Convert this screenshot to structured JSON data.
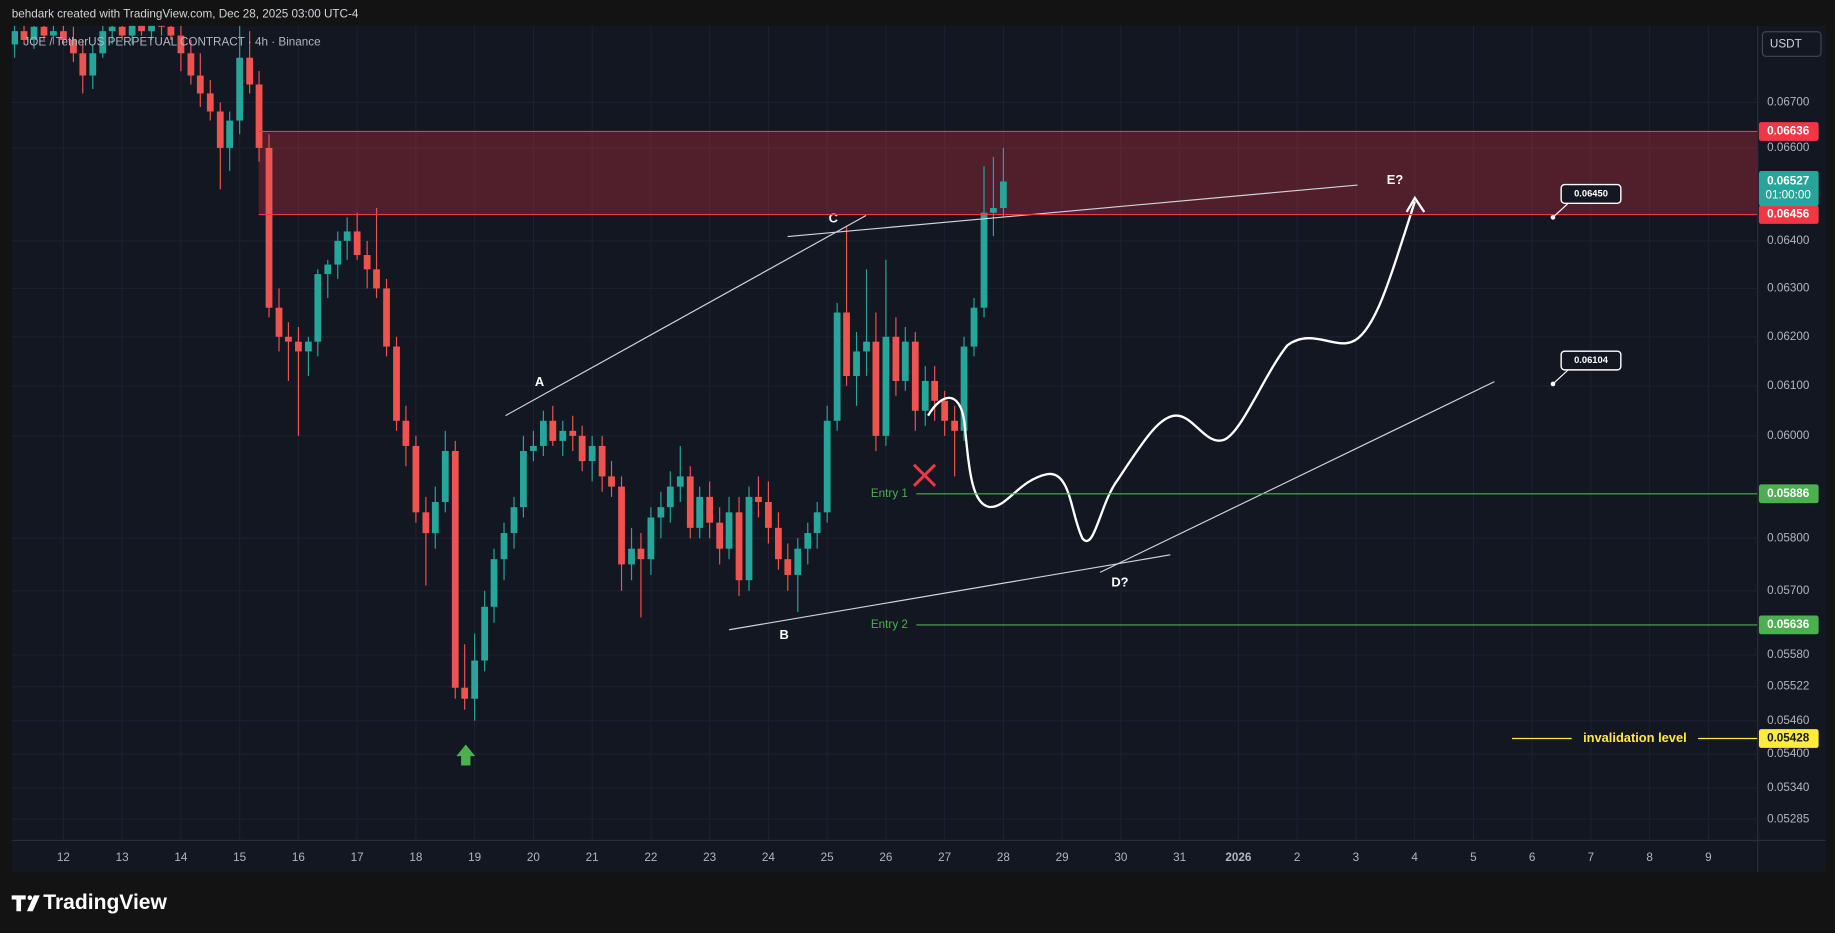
{
  "header": {
    "credit": "behdark created with TradingView.com, Dec 28, 2025 03:00 UTC-4",
    "symbol": "JOE / TetherUS PERPETUAL CONTRACT · 4h · Binance",
    "currency": "USDT",
    "brand": "TradingView"
  },
  "chart_data": {
    "type": "candlestick",
    "x": [
      11.17,
      11.33,
      11.5,
      11.67,
      11.83,
      12,
      12.17,
      12.33,
      12.5,
      12.67,
      12.83,
      13,
      13.17,
      13.33,
      13.5,
      13.67,
      13.83,
      14,
      14.17,
      14.33,
      14.5,
      14.67,
      14.83,
      15,
      15.17,
      15.33,
      15.5,
      15.67,
      15.83,
      16,
      16.17,
      16.33,
      16.5,
      16.67,
      16.83,
      17,
      17.17,
      17.33,
      17.5,
      17.67,
      17.83,
      18,
      18.17,
      18.33,
      18.5,
      18.67,
      18.83,
      19,
      19.17,
      19.33,
      19.5,
      19.67,
      19.83,
      20,
      20.17,
      20.33,
      20.5,
      20.67,
      20.83,
      21,
      21.17,
      21.33,
      21.5,
      21.67,
      21.83,
      22,
      22.17,
      22.33,
      22.5,
      22.67,
      22.83,
      23,
      23.17,
      23.33,
      23.5,
      23.67,
      23.83,
      24,
      24.17,
      24.33,
      24.5,
      24.67,
      24.83,
      25,
      25.17,
      25.33,
      25.5,
      25.67,
      25.83,
      26,
      26.17,
      26.33,
      26.5,
      26.67,
      26.83,
      27,
      27.17,
      27.33,
      27.5,
      27.67,
      27.83,
      28
    ],
    "open": [
      0.0683,
      0.0686,
      0.0684,
      0.0687,
      0.0685,
      0.0686,
      0.0684,
      0.0681,
      0.0676,
      0.0681,
      0.0686,
      0.0687,
      0.0685,
      0.0688,
      0.0686,
      0.0689,
      0.0687,
      0.0685,
      0.0681,
      0.0676,
      0.0672,
      0.0668,
      0.066,
      0.0666,
      0.068,
      0.0674,
      0.066,
      0.0626,
      0.062,
      0.0619,
      0.0617,
      0.0619,
      0.0633,
      0.0635,
      0.064,
      0.0642,
      0.0637,
      0.0634,
      0.063,
      0.0618,
      0.0603,
      0.0598,
      0.0585,
      0.0581,
      0.0587,
      0.0597,
      0.0552,
      0.055,
      0.0557,
      0.0567,
      0.0576,
      0.0581,
      0.0586,
      0.0597,
      0.0598,
      0.0603,
      0.0599,
      0.0601,
      0.06,
      0.0595,
      0.0598,
      0.0592,
      0.059,
      0.0575,
      0.0578,
      0.0576,
      0.0584,
      0.0586,
      0.059,
      0.0592,
      0.0582,
      0.0588,
      0.0583,
      0.0578,
      0.0585,
      0.0572,
      0.0588,
      0.0587,
      0.0582,
      0.0576,
      0.0573,
      0.0578,
      0.0581,
      0.0585,
      0.0603,
      0.0625,
      0.0612,
      0.0617,
      0.0619,
      0.06,
      0.062,
      0.0611,
      0.0619,
      0.0605,
      0.0611,
      0.0607,
      0.0603,
      0.0601,
      0.0618,
      0.0626,
      0.0646,
      0.0647
    ],
    "high": [
      0.069,
      0.069,
      0.0689,
      0.069,
      0.0689,
      0.0689,
      0.0687,
      0.0684,
      0.0683,
      0.0688,
      0.069,
      0.0691,
      0.069,
      0.0692,
      0.069,
      0.0692,
      0.0691,
      0.0689,
      0.0684,
      0.0681,
      0.0675,
      0.067,
      0.0668,
      0.0688,
      0.0686,
      0.0677,
      0.0663,
      0.063,
      0.0623,
      0.0622,
      0.062,
      0.0634,
      0.0636,
      0.0642,
      0.0645,
      0.0646,
      0.064,
      0.0647,
      0.0632,
      0.062,
      0.0606,
      0.06,
      0.0588,
      0.059,
      0.0601,
      0.0599,
      0.056,
      0.0562,
      0.057,
      0.0578,
      0.0583,
      0.0588,
      0.06,
      0.0601,
      0.0605,
      0.0606,
      0.0603,
      0.0604,
      0.0602,
      0.06,
      0.06,
      0.0595,
      0.0592,
      0.0582,
      0.0581,
      0.0586,
      0.0589,
      0.0593,
      0.0598,
      0.0594,
      0.059,
      0.0591,
      0.0586,
      0.0588,
      0.0588,
      0.059,
      0.0592,
      0.0591,
      0.0585,
      0.0579,
      0.058,
      0.0583,
      0.0587,
      0.0606,
      0.0627,
      0.0643,
      0.0621,
      0.0634,
      0.0625,
      0.0636,
      0.0624,
      0.0622,
      0.0621,
      0.0614,
      0.0614,
      0.0609,
      0.0606,
      0.062,
      0.0628,
      0.0656,
      0.0658,
      0.066
    ],
    "low": [
      0.068,
      0.0683,
      0.0682,
      0.0684,
      0.0683,
      0.0683,
      0.0679,
      0.0672,
      0.0673,
      0.068,
      0.0683,
      0.0684,
      0.0683,
      0.0685,
      0.0684,
      0.0685,
      0.0684,
      0.0677,
      0.0674,
      0.0669,
      0.0666,
      0.0651,
      0.0655,
      0.0663,
      0.0672,
      0.0657,
      0.0624,
      0.0617,
      0.0611,
      0.06,
      0.0612,
      0.0616,
      0.0628,
      0.0632,
      0.0636,
      0.0636,
      0.063,
      0.0628,
      0.0616,
      0.0601,
      0.0594,
      0.0583,
      0.0571,
      0.0578,
      0.0585,
      0.055,
      0.0548,
      0.0546,
      0.0555,
      0.0564,
      0.0572,
      0.0578,
      0.0584,
      0.0595,
      0.0596,
      0.0598,
      0.0596,
      0.0597,
      0.0593,
      0.0591,
      0.0589,
      0.0588,
      0.057,
      0.0572,
      0.0565,
      0.0573,
      0.058,
      0.0583,
      0.0587,
      0.058,
      0.058,
      0.058,
      0.0575,
      0.0576,
      0.0569,
      0.057,
      0.0584,
      0.0579,
      0.0574,
      0.057,
      0.0566,
      0.0575,
      0.0578,
      0.0583,
      0.0601,
      0.061,
      0.0606,
      0.0612,
      0.0597,
      0.0598,
      0.0608,
      0.0609,
      0.0601,
      0.0602,
      0.0603,
      0.06,
      0.0592,
      0.0599,
      0.0616,
      0.0624,
      0.0641,
      0.0645
    ],
    "close": [
      0.0686,
      0.0684,
      0.0687,
      0.0685,
      0.0686,
      0.0684,
      0.0681,
      0.0676,
      0.0681,
      0.0686,
      0.0687,
      0.0685,
      0.0688,
      0.0686,
      0.0689,
      0.0687,
      0.0685,
      0.0681,
      0.0676,
      0.0672,
      0.0668,
      0.066,
      0.0666,
      0.068,
      0.0674,
      0.066,
      0.0626,
      0.062,
      0.0619,
      0.0617,
      0.0619,
      0.0633,
      0.0635,
      0.064,
      0.0642,
      0.0637,
      0.0634,
      0.063,
      0.0618,
      0.0603,
      0.0598,
      0.0585,
      0.0581,
      0.0587,
      0.0597,
      0.0552,
      0.055,
      0.0557,
      0.0567,
      0.0576,
      0.0581,
      0.0586,
      0.0597,
      0.0598,
      0.0603,
      0.0599,
      0.0601,
      0.06,
      0.0595,
      0.0598,
      0.0592,
      0.059,
      0.0575,
      0.0578,
      0.0576,
      0.0584,
      0.0586,
      0.059,
      0.0592,
      0.0582,
      0.0588,
      0.0583,
      0.0578,
      0.0585,
      0.0572,
      0.0588,
      0.0587,
      0.0582,
      0.0576,
      0.0573,
      0.0578,
      0.0581,
      0.0585,
      0.0603,
      0.0625,
      0.0612,
      0.0617,
      0.0619,
      0.06,
      0.062,
      0.0611,
      0.0619,
      0.0605,
      0.0611,
      0.0607,
      0.0603,
      0.0601,
      0.0618,
      0.0626,
      0.0646,
      0.0647,
      0.06527
    ],
    "up_color": "#26a69a",
    "down_color": "#ef5350",
    "xlim": [
      11.12,
      40.84
    ],
    "xticks": [
      12,
      13,
      14,
      15,
      16,
      17,
      18,
      19,
      20,
      21,
      22,
      23,
      24,
      25,
      26,
      27,
      28,
      29,
      30,
      31,
      {
        "value": 32,
        "label": "2026"
      },
      {
        "value": 33,
        "label": "2"
      },
      {
        "value": 34,
        "label": "3"
      },
      {
        "value": 35,
        "label": "4"
      },
      {
        "value": 36,
        "label": "5"
      },
      {
        "value": 37,
        "label": "6"
      },
      {
        "value": 38,
        "label": "7"
      },
      {
        "value": 39,
        "label": "8"
      },
      {
        "value": 40,
        "label": "9"
      }
    ],
    "ylim": [
      0.05248,
      0.06872
    ],
    "log_scale": true,
    "yticks": [
      {
        "value": 0.067,
        "label": "0.06700"
      },
      {
        "value": 0.066,
        "label": "0.06600"
      },
      {
        "value": 0.064,
        "label": "0.06400"
      },
      {
        "value": 0.063,
        "label": "0.06300"
      },
      {
        "value": 0.062,
        "label": "0.06200"
      },
      {
        "value": 0.061,
        "label": "0.06100"
      },
      {
        "value": 0.06,
        "label": "0.06000"
      },
      {
        "value": 0.058,
        "label": "0.05800"
      },
      {
        "value": 0.057,
        "label": "0.05700"
      },
      {
        "value": 0.0558,
        "label": "0.05580"
      },
      {
        "value": 0.05522,
        "label": "0.05522"
      },
      {
        "value": 0.0546,
        "label": "0.05460"
      },
      {
        "value": 0.054,
        "label": "0.05400"
      },
      {
        "value": 0.0534,
        "label": "0.05340"
      },
      {
        "value": 0.05285,
        "label": "0.05285"
      }
    ],
    "grid": true,
    "last": {
      "value": 0.06527,
      "label": "0.06527",
      "countdown": "01:00:00",
      "color": "#26a69a"
    },
    "levels": [
      {
        "value": 0.06636,
        "label": "0.06636",
        "color": "#f23645"
      },
      {
        "value": 0.06456,
        "label": "0.06456",
        "color": "#f23645"
      },
      {
        "name": "Entry 1",
        "value": 0.05886,
        "label": "0.05886",
        "color": "#4caf50"
      },
      {
        "name": "Entry 2",
        "value": 0.05636,
        "label": "0.05636",
        "color": "#4caf50"
      },
      {
        "name": "invalidation level",
        "value": 0.05428,
        "label": "0.05428",
        "color": "#ffeb3b"
      }
    ],
    "wave_labels": [
      "A",
      "B",
      "C",
      "D?",
      "E?"
    ],
    "callouts": [
      {
        "value": 0.0645,
        "label": "0.06450"
      },
      {
        "value": 0.06104,
        "label": "0.06104"
      }
    ]
  }
}
